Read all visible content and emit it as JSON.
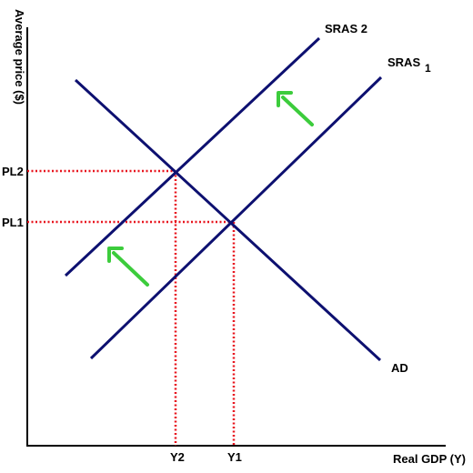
{
  "axes": {
    "y_label": "Average price ($)",
    "x_label": "Real GDP (Y)"
  },
  "curves": {
    "sras2_label": "SRAS 2",
    "sras1_label": "SRAS",
    "sras1_subscript": "1",
    "ad_label": "AD"
  },
  "price_levels": {
    "pl2": "PL2",
    "pl1": "PL1"
  },
  "output_levels": {
    "y2": "Y2",
    "y1": "Y1"
  },
  "colors": {
    "curve": "#0d1070",
    "axis": "#000000",
    "guide": "#e8141e",
    "arrow": "#3ccc3c"
  },
  "shift_direction": "up-left"
}
